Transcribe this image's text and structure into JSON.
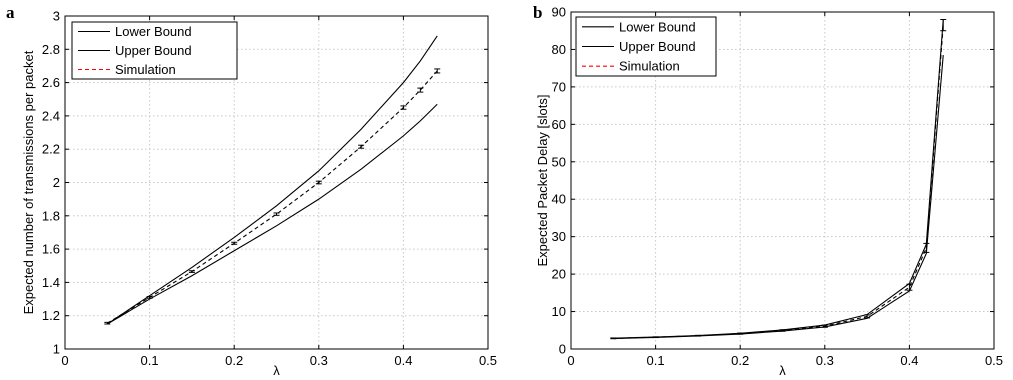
{
  "chart_data": [
    {
      "panel": "a",
      "type": "line",
      "xlabel": "λ",
      "ylabel": "Expected number of transmissions per packet",
      "xlim": [
        0,
        0.5
      ],
      "ylim": [
        1,
        3
      ],
      "xticks": [
        "0",
        "0.1",
        "0.2",
        "0.3",
        "0.4",
        "0.5"
      ],
      "yticks": [
        "1",
        "1.2",
        "1.4",
        "1.6",
        "1.8",
        "2",
        "2.2",
        "2.4",
        "2.6",
        "2.8",
        "3"
      ],
      "grid": true,
      "legend_position": "top-left",
      "series": [
        {
          "name": "Lower Bound",
          "color": "#000000",
          "dash": "solid",
          "x": [
            0.05,
            0.1,
            0.15,
            0.2,
            0.25,
            0.3,
            0.35,
            0.4,
            0.42,
            0.44
          ],
          "y": [
            1.15,
            1.3,
            1.44,
            1.59,
            1.74,
            1.9,
            2.08,
            2.28,
            2.37,
            2.47
          ]
        },
        {
          "name": "Upper Bound",
          "color": "#000000",
          "dash": "solid",
          "x": [
            0.05,
            0.1,
            0.15,
            0.2,
            0.25,
            0.3,
            0.35,
            0.4,
            0.42,
            0.44
          ],
          "y": [
            1.15,
            1.32,
            1.49,
            1.67,
            1.86,
            2.07,
            2.32,
            2.6,
            2.73,
            2.88
          ]
        },
        {
          "name": "Simulation",
          "color": "#000000",
          "legend_color": "#ff0000",
          "dash": "dashed",
          "x": [
            0.05,
            0.1,
            0.15,
            0.2,
            0.25,
            0.3,
            0.35,
            0.4,
            0.42,
            0.44
          ],
          "y": [
            1.155,
            1.31,
            1.465,
            1.635,
            1.81,
            2.0,
            2.215,
            2.45,
            2.555,
            2.67
          ]
        }
      ],
      "error_bars": {
        "x": [
          0.05,
          0.1,
          0.15,
          0.2,
          0.25,
          0.3,
          0.35,
          0.4,
          0.42,
          0.44
        ],
        "y": [
          1.155,
          1.31,
          1.465,
          1.635,
          1.81,
          2.0,
          2.215,
          2.45,
          2.555,
          2.67
        ],
        "err": [
          0.005,
          0.005,
          0.005,
          0.006,
          0.007,
          0.008,
          0.009,
          0.01,
          0.012,
          0.012
        ]
      }
    },
    {
      "panel": "b",
      "type": "line",
      "xlabel": "λ",
      "ylabel": "Expected Packet Delay [slots]",
      "xlim": [
        0,
        0.5
      ],
      "ylim": [
        0,
        90
      ],
      "xticks": [
        "0",
        "0.1",
        "0.2",
        "0.3",
        "0.4",
        "0.5"
      ],
      "yticks": [
        "0",
        "10",
        "20",
        "30",
        "40",
        "50",
        "60",
        "70",
        "80",
        "90"
      ],
      "grid": true,
      "legend_position": "top-left",
      "series": [
        {
          "name": "Lower Bound",
          "color": "#000000",
          "dash": "solid",
          "x": [
            0.05,
            0.1,
            0.15,
            0.2,
            0.25,
            0.3,
            0.35,
            0.4,
            0.42,
            0.44
          ],
          "y": [
            2.8,
            3.1,
            3.5,
            4.0,
            4.8,
            5.9,
            8.2,
            15.5,
            25.5,
            78.5
          ]
        },
        {
          "name": "Upper Bound",
          "color": "#000000",
          "dash": "solid",
          "x": [
            0.05,
            0.1,
            0.15,
            0.2,
            0.25,
            0.3,
            0.35,
            0.4,
            0.42,
            0.44
          ],
          "y": [
            2.9,
            3.2,
            3.6,
            4.2,
            5.1,
            6.4,
            9.2,
            17.5,
            28.0,
            88.0
          ]
        },
        {
          "name": "Simulation",
          "color": "#000000",
          "legend_color": "#ff0000",
          "dash": "dashed",
          "x": [
            0.05,
            0.1,
            0.15,
            0.2,
            0.25,
            0.3,
            0.35,
            0.4,
            0.42,
            0.44
          ],
          "y": [
            2.85,
            3.15,
            3.55,
            4.1,
            4.95,
            6.1,
            8.7,
            16.5,
            27.0,
            86.5
          ]
        }
      ],
      "error_bars": {
        "x": [
          0.05,
          0.1,
          0.15,
          0.2,
          0.25,
          0.3,
          0.35,
          0.4,
          0.42,
          0.44
        ],
        "y": [
          2.85,
          3.15,
          3.55,
          4.1,
          4.95,
          6.1,
          8.7,
          16.5,
          27.0,
          86.5
        ],
        "err": [
          0.1,
          0.1,
          0.1,
          0.15,
          0.2,
          0.3,
          0.4,
          0.8,
          1.2,
          1.5
        ]
      }
    }
  ]
}
